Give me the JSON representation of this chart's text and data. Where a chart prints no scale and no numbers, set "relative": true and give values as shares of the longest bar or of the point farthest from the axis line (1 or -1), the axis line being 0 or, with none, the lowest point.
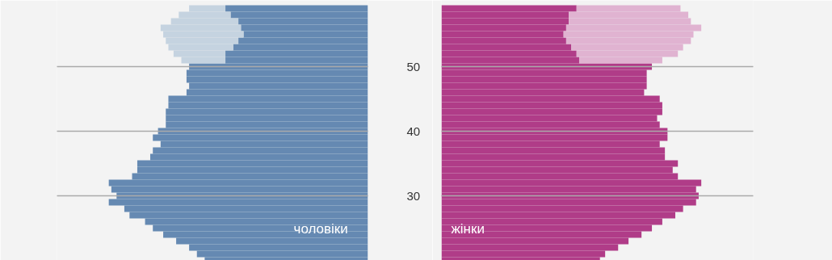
{
  "chart_data": [
    {
      "type": "bar",
      "orientation": "horizontal",
      "stacked": true,
      "relative": true,
      "tick_labels": "y",
      "grid": "y",
      "x": [
        20,
        21,
        22,
        23,
        24,
        25,
        26,
        27,
        28,
        29,
        30,
        31,
        32,
        33,
        34,
        35,
        36,
        37,
        38,
        39,
        40,
        41,
        42,
        43,
        44,
        45,
        46,
        47,
        48,
        49,
        50,
        51,
        52,
        53,
        54,
        55,
        56,
        57,
        58,
        59
      ],
      "ylim": [
        20,
        60.25
      ],
      "yticks": [
        30,
        40,
        50
      ],
      "series": [
        {
          "name": "чоловіки",
          "color": "#6589b2",
          "values": [
            -0.63,
            -0.66,
            -0.69,
            -0.74,
            -0.79,
            -0.83,
            -0.86,
            -0.92,
            -0.94,
            -1.0,
            -0.97,
            -0.99,
            -1.0,
            -0.91,
            -0.89,
            -0.89,
            -0.84,
            -0.83,
            -0.8,
            -0.83,
            -0.81,
            -0.78,
            -0.78,
            -0.78,
            -0.77,
            -0.77,
            -0.7,
            -0.69,
            -0.7,
            -0.7,
            -0.69,
            -0.55,
            -0.55,
            -0.52,
            -0.5,
            -0.48,
            -0.49,
            -0.5,
            -0.53,
            -0.55
          ]
        },
        {
          "color": "#c5d3e0",
          "values": [
            null,
            null,
            null,
            null,
            null,
            null,
            null,
            null,
            null,
            null,
            null,
            null,
            null,
            null,
            null,
            null,
            null,
            null,
            null,
            null,
            null,
            null,
            null,
            null,
            null,
            null,
            null,
            null,
            null,
            null,
            null,
            -0.17,
            -0.2,
            -0.25,
            -0.28,
            -0.31,
            -0.31,
            -0.26,
            -0.2,
            -0.14
          ]
        }
      ]
    },
    {
      "type": "bar",
      "orientation": "horizontal",
      "stacked": true,
      "relative": true,
      "tick_labels": false,
      "grid": "y",
      "x": [
        20,
        21,
        22,
        23,
        24,
        25,
        26,
        27,
        28,
        29,
        30,
        31,
        32,
        33,
        34,
        35,
        36,
        37,
        38,
        39,
        40,
        41,
        42,
        43,
        44,
        45,
        46,
        47,
        48,
        49,
        50,
        51,
        52,
        53,
        54,
        55,
        56,
        57,
        58,
        59
      ],
      "ylim": [
        20,
        60.25
      ],
      "yticks": [
        30,
        40,
        50
      ],
      "series": [
        {
          "name": "жінки",
          "color": "#b03c88",
          "values": [
            0.61,
            0.63,
            0.68,
            0.72,
            0.77,
            0.81,
            0.85,
            0.9,
            0.93,
            0.98,
            0.99,
            0.98,
            1.0,
            0.91,
            0.89,
            0.91,
            0.86,
            0.86,
            0.84,
            0.87,
            0.87,
            0.84,
            0.83,
            0.85,
            0.85,
            0.84,
            0.78,
            0.79,
            0.79,
            0.79,
            0.81,
            0.53,
            0.52,
            0.5,
            0.48,
            0.47,
            0.48,
            0.49,
            0.49,
            0.52
          ]
        },
        {
          "color": "#e0b3d1",
          "values": [
            null,
            null,
            null,
            null,
            null,
            null,
            null,
            null,
            null,
            null,
            null,
            null,
            null,
            null,
            null,
            null,
            null,
            null,
            null,
            null,
            null,
            null,
            null,
            null,
            null,
            null,
            null,
            null,
            null,
            null,
            null,
            0.32,
            0.39,
            0.43,
            0.48,
            0.5,
            0.52,
            0.47,
            0.46,
            0.4
          ]
        }
      ]
    }
  ]
}
